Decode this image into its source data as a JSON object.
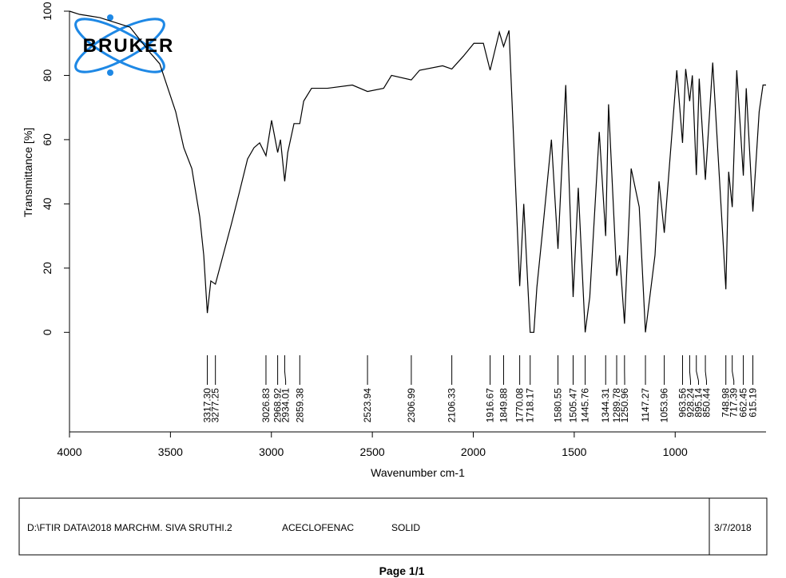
{
  "chart_data": {
    "type": "line",
    "logo": "BRUKER",
    "xlabel": "Wavenumber cm-1",
    "ylabel": "Transmittance [%]",
    "color": "#000000",
    "xlim": [
      4000,
      550
    ],
    "ylim": [
      -31,
      100
    ],
    "xticks": [
      4000,
      3500,
      3000,
      2500,
      2000,
      1500,
      1000
    ],
    "yticks": [
      0,
      20,
      40,
      60,
      80,
      100
    ],
    "x": [
      4000,
      3950,
      3900,
      3850,
      3800,
      3750,
      3700,
      3600,
      3553,
      3500,
      3474,
      3434,
      3394,
      3355,
      3335,
      3317.3,
      3300,
      3277.25,
      3197,
      3157,
      3118,
      3086,
      3058,
      3026.83,
      2999,
      2968.92,
      2955,
      2934.01,
      2919,
      2888,
      2859.38,
      2840,
      2801,
      2722,
      2599,
      2523.94,
      2444,
      2405,
      2306.99,
      2266,
      2152,
      2106.33,
      2049,
      1997,
      1950,
      1916.67,
      1871,
      1849.88,
      1823,
      1800,
      1770.08,
      1750,
      1718.17,
      1700,
      1685,
      1653,
      1613,
      1580.55,
      1542,
      1505.47,
      1480,
      1445.76,
      1423,
      1376,
      1344.31,
      1330,
      1289.78,
      1275,
      1250.96,
      1218,
      1178,
      1147.27,
      1100,
      1080,
      1053.96,
      992,
      963.56,
      948,
      928.24,
      915,
      895.14,
      881,
      850.44,
      814,
      748.98,
      735,
      717.39,
      695,
      662.45,
      648,
      615.19,
      584,
      565,
      550
    ],
    "values": [
      100,
      99,
      98.5,
      98,
      97,
      96,
      95,
      87,
      83.6,
      73.6,
      68.7,
      57.5,
      51,
      36,
      24,
      6,
      16,
      15,
      34,
      44,
      54,
      57.5,
      59,
      55,
      66,
      56,
      60,
      47,
      56,
      65,
      65,
      72,
      76,
      76,
      77,
      75,
      76,
      80,
      78.6,
      81.6,
      83,
      82,
      86,
      90,
      90,
      81.6,
      93.5,
      89,
      94,
      60,
      14.4,
      40,
      0,
      0,
      14,
      34,
      60,
      26,
      77,
      11,
      45,
      0,
      11,
      62.4,
      30,
      71,
      17.6,
      24,
      2.7,
      51,
      39,
      0,
      24,
      47,
      31,
      81.6,
      59,
      82,
      72,
      80,
      49,
      79,
      47.5,
      84,
      13.4,
      50,
      39,
      81.6,
      48.8,
      76,
      37.6,
      68.7,
      77,
      77
    ],
    "peaks": [
      {
        "value": 3317.3,
        "label": "3317.30"
      },
      3277.25,
      3026.83,
      2968.92,
      2934.01,
      2859.38,
      2523.94,
      2306.99,
      2106.33,
      1916.67,
      1849.88,
      1770.08,
      1718.17,
      1580.55,
      1505.47,
      1445.76,
      1344.31,
      1289.78,
      1250.96,
      1147.27,
      1053.96,
      963.56,
      928.24,
      895.14,
      850.44,
      748.98,
      717.39,
      662.45,
      615.19
    ]
  },
  "footer": {
    "path": "D:\\FTIR DATA\\2018 MARCH\\M. SIVA SRUTHI.2",
    "sample": "ACECLOFENAC",
    "form": "SOLID",
    "date": "3/7/2018"
  },
  "page": "Page 1/1"
}
